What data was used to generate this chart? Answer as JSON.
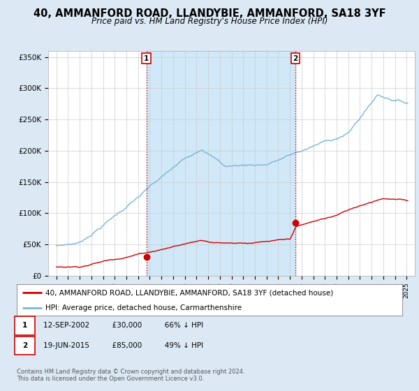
{
  "title": "40, AMMANFORD ROAD, LLANDYBIE, AMMANFORD, SA18 3YF",
  "subtitle": "Price paid vs. HM Land Registry's House Price Index (HPI)",
  "ylim": [
    0,
    360000
  ],
  "yticks": [
    0,
    50000,
    100000,
    150000,
    200000,
    250000,
    300000,
    350000
  ],
  "ytick_labels": [
    "£0",
    "£50K",
    "£100K",
    "£150K",
    "£200K",
    "£250K",
    "£300K",
    "£350K"
  ],
  "hpi_color": "#7ab4d8",
  "price_color": "#cc0000",
  "sale1_date": 2002.71,
  "sale1_price": 30000,
  "sale2_date": 2015.47,
  "sale2_price": 85000,
  "vline_color": "#cc0000",
  "marker_color": "#cc0000",
  "legend_red_label": "40, AMMANFORD ROAD, LLANDYBIE, AMMANFORD, SA18 3YF (detached house)",
  "legend_blue_label": "HPI: Average price, detached house, Carmarthenshire",
  "footer": "Contains HM Land Registry data © Crown copyright and database right 2024.\nThis data is licensed under the Open Government Licence v3.0.",
  "bg_color": "#dce9f5",
  "plot_bg": "#ffffff",
  "shade_color": "#d0e8f8",
  "title_fontsize": 10.5,
  "subtitle_fontsize": 8.5
}
